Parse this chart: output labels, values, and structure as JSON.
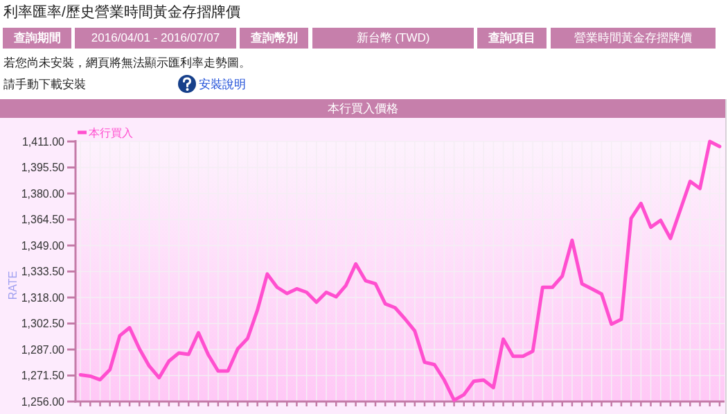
{
  "chart_data": {
    "type": "line",
    "title": "利率匯率/歷史營業時間黃金存摺牌價",
    "subtitle": "本行買入價格",
    "ylabel": "RATE",
    "annotations": [
      "查詢期間",
      "2016/04/01 - 2016/07/07",
      "查詢幣別",
      "新台幣 (TWD)",
      "查詢項目",
      "營業時間黃金存摺牌價",
      "若您尚未安裝，網頁將無法顯示匯利率走勢圖。",
      "請手動下載安裝",
      "安裝說明"
    ],
    "categories": [
      null,
      null,
      null,
      null,
      null,
      null,
      null,
      null,
      null,
      null,
      null,
      null,
      null,
      null,
      null,
      null,
      null,
      null,
      null,
      null,
      null,
      null,
      null,
      null,
      null,
      null,
      null,
      null,
      null,
      null,
      null,
      null,
      null,
      null,
      null,
      null,
      null,
      null,
      null,
      null,
      null,
      null,
      null,
      null,
      null,
      null,
      null,
      null,
      null,
      null,
      null,
      null,
      null,
      null,
      null,
      null,
      null,
      null,
      null,
      null,
      null,
      null,
      null,
      null,
      null,
      null
    ],
    "series": [
      {
        "name": "本行買入",
        "color": "#ff4fcf",
        "values": [
          1271.9,
          1271.1,
          1269.0,
          1275.0,
          1295.2,
          1300.0,
          1287.4,
          1277.1,
          1270.2,
          1280.1,
          1284.9,
          1284.1,
          1297.0,
          1283.9,
          1274.2,
          1274.2,
          1287.4,
          1293.6,
          1310.5,
          1332.0,
          1324.1,
          1320.4,
          1323.2,
          1321.1,
          1315.2,
          1321.1,
          1318.4,
          1325.2,
          1338.0,
          1328.0,
          1326.2,
          1314.2,
          1311.9,
          1305.3,
          1298.1,
          1279.4,
          1278.0,
          1268.8,
          1256.8,
          1260.1,
          1268.1,
          1268.8,
          1264.3,
          1293.2,
          1283.0,
          1283.0,
          1286.0,
          1324.1,
          1324.1,
          1330.8,
          1352.1,
          1326.2,
          1323.2,
          1320.1,
          1302.1,
          1305.0,
          1365.2,
          1374.1,
          1359.9,
          1364.0,
          1353.2,
          1370.2,
          1387.2,
          1383.0,
          1411.0,
          1408.0
        ]
      }
    ],
    "ylim": [
      1256,
      1411
    ],
    "yticks": [
      {
        "value": 1256,
        "label": "1,256.00"
      },
      {
        "value": 1271.5,
        "label": "1,271.50"
      },
      {
        "value": 1287,
        "label": "1,287.00"
      },
      {
        "value": 1302.5,
        "label": "1,302.50"
      },
      {
        "value": 1318,
        "label": "1,318.00"
      },
      {
        "value": 1333.5,
        "label": "1,333.50"
      },
      {
        "value": 1349,
        "label": "1,349.00"
      },
      {
        "value": 1364.5,
        "label": "1,364.50"
      },
      {
        "value": 1380,
        "label": "1,380.00"
      },
      {
        "value": 1395.5,
        "label": "1,395.50"
      },
      {
        "value": 1411,
        "label": "1,411.00"
      }
    ],
    "grid": true,
    "legend": "top left",
    "tick_labels": "y",
    "line_style": "solid"
  }
}
